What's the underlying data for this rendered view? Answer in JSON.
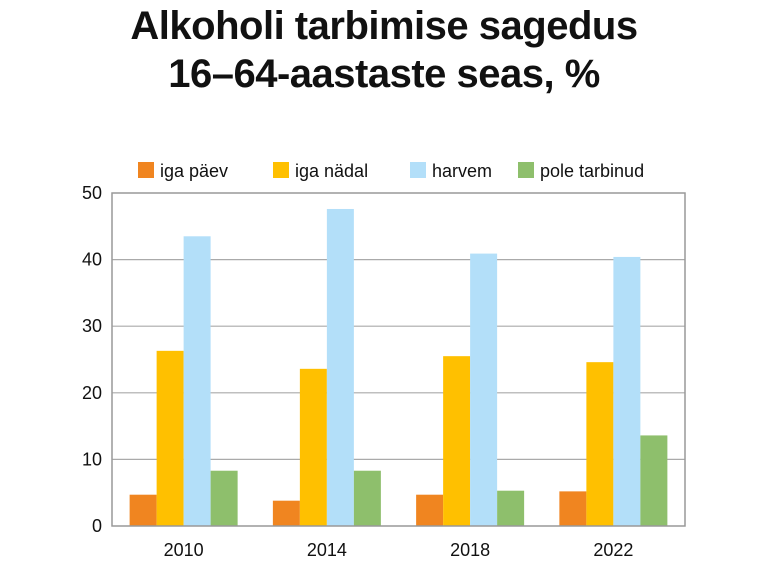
{
  "chart_data": {
    "type": "bar",
    "title_lines": [
      "Alkoholi tarbimise sagedus",
      "16–64-aastaste seas, %"
    ],
    "title": "Alkoholi tarbimise sagedus 16–64-aastaste seas, %",
    "xlabel": "",
    "ylabel": "",
    "categories": [
      "2010",
      "2014",
      "2018",
      "2022"
    ],
    "series": [
      {
        "name": "iga päev",
        "color": "#f08520",
        "values": [
          4.7,
          3.8,
          4.7,
          5.2
        ]
      },
      {
        "name": "iga nädal",
        "color": "#ffc000",
        "values": [
          26.3,
          23.6,
          25.5,
          24.6
        ]
      },
      {
        "name": "harvem",
        "color": "#b3dff9",
        "values": [
          43.5,
          47.6,
          40.9,
          40.4
        ]
      },
      {
        "name": "pole tarbinud",
        "color": "#8ebf6c",
        "values": [
          8.3,
          8.3,
          5.3,
          13.6
        ]
      }
    ],
    "ylim": [
      0,
      50
    ],
    "yticks": [
      0,
      10,
      20,
      30,
      40,
      50
    ],
    "grid": true,
    "legend_position": "top"
  }
}
